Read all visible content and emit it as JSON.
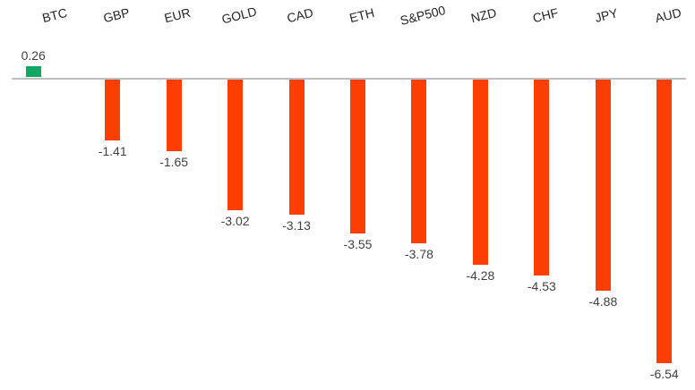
{
  "chart_data": {
    "type": "bar",
    "categories": [
      "BTC",
      "GBP",
      "EUR",
      "GOLD",
      "CAD",
      "ETH",
      "S&P500",
      "NZD",
      "CHF",
      "JPY",
      "AUD"
    ],
    "values": [
      0.26,
      -1.41,
      -1.65,
      -3.02,
      -3.13,
      -3.55,
      -3.78,
      -4.28,
      -4.53,
      -4.88,
      -6.54
    ],
    "data_labels": [
      "0.26",
      "-1.41",
      "-1.65",
      "-3.02",
      "-3.13",
      "-3.55",
      "-3.78",
      "-4.28",
      "-4.53",
      "-4.88",
      "-6.54"
    ],
    "title": "",
    "xlabel": "",
    "ylabel": "",
    "ylim": [
      -7,
      0.5
    ],
    "grid": false,
    "legend": "none",
    "baseline_value": 0,
    "category_labels_position": "top",
    "category_labels_rotated": true,
    "colors": {
      "positive_bar": "#11A663",
      "negative_bar": "#FC3E03",
      "zero_line": "#BFBFBF",
      "value_label_text": "#404040",
      "category_label_text": "#262626",
      "background": "#FFFFFF"
    }
  }
}
